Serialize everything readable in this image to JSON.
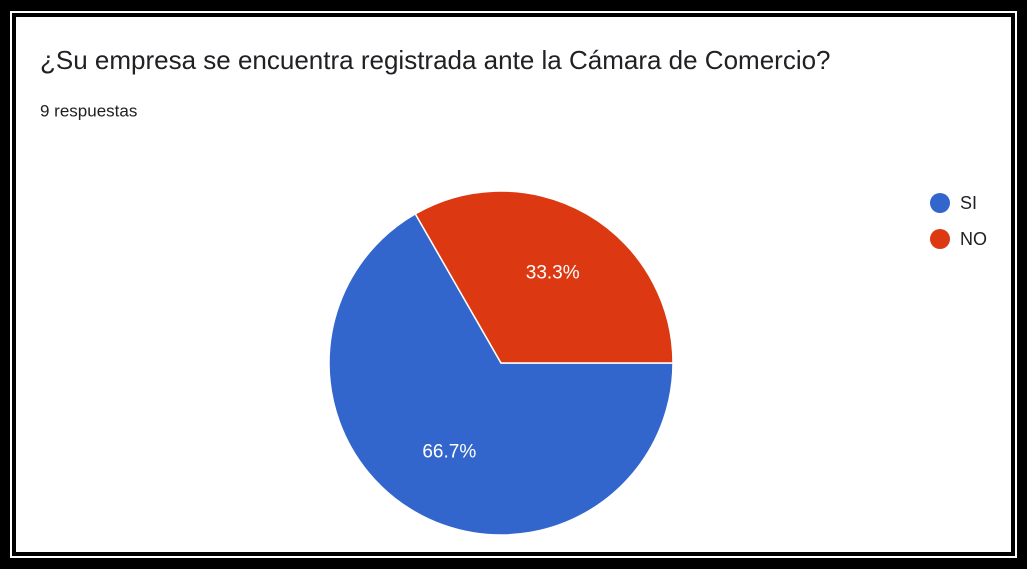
{
  "chart_data": {
    "type": "pie",
    "title": "¿Su empresa se encuentra registrada ante la Cámara de Comercio?",
    "subtitle": "9 respuestas",
    "categories": [
      "SI",
      "NO"
    ],
    "values": [
      66.7,
      33.3
    ],
    "value_labels": [
      "66.7%",
      "33.3%"
    ],
    "colors": [
      "#3366cc",
      "#dc3912"
    ],
    "legend": "right"
  }
}
